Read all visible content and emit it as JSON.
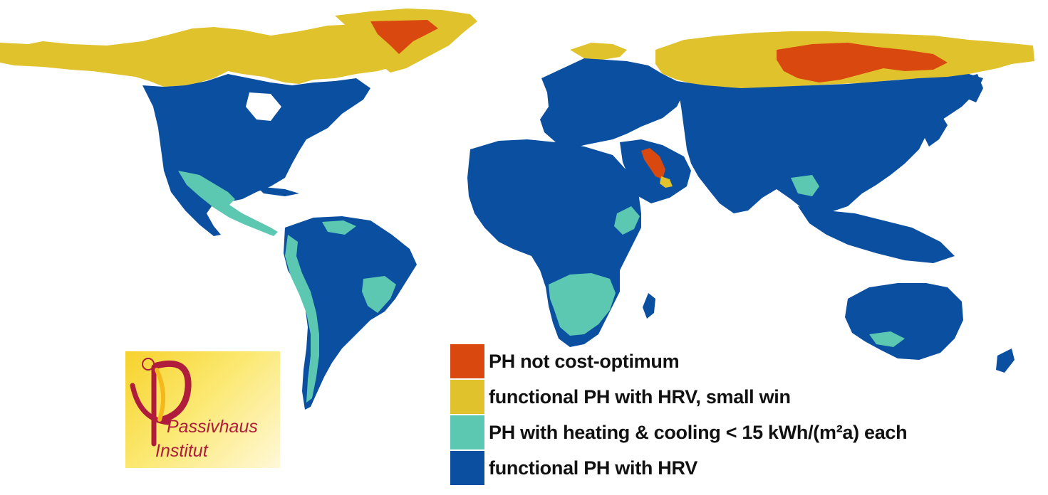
{
  "map": {
    "colors": {
      "not_cost_optimum": "#d9480f",
      "hrv_small_win": "#e0c22c",
      "heating_cooling": "#5cc8b2",
      "hrv": "#0a4fa0",
      "background": "#ffffff"
    }
  },
  "legend": {
    "items": [
      {
        "label": "PH not cost-optimum",
        "color": "#d9480f"
      },
      {
        "label": "functional PH with HRV, small win",
        "color": "#e0c22c"
      },
      {
        "label": "PH with heating & cooling < 15 kWh/(m²a) each",
        "color": "#5cc8b2"
      },
      {
        "label": "functional PH with HRV",
        "color": "#0a4fa0"
      }
    ]
  },
  "logo": {
    "line1": "Passivhaus",
    "line2": "Institut",
    "text_color": "#b01c3c"
  }
}
